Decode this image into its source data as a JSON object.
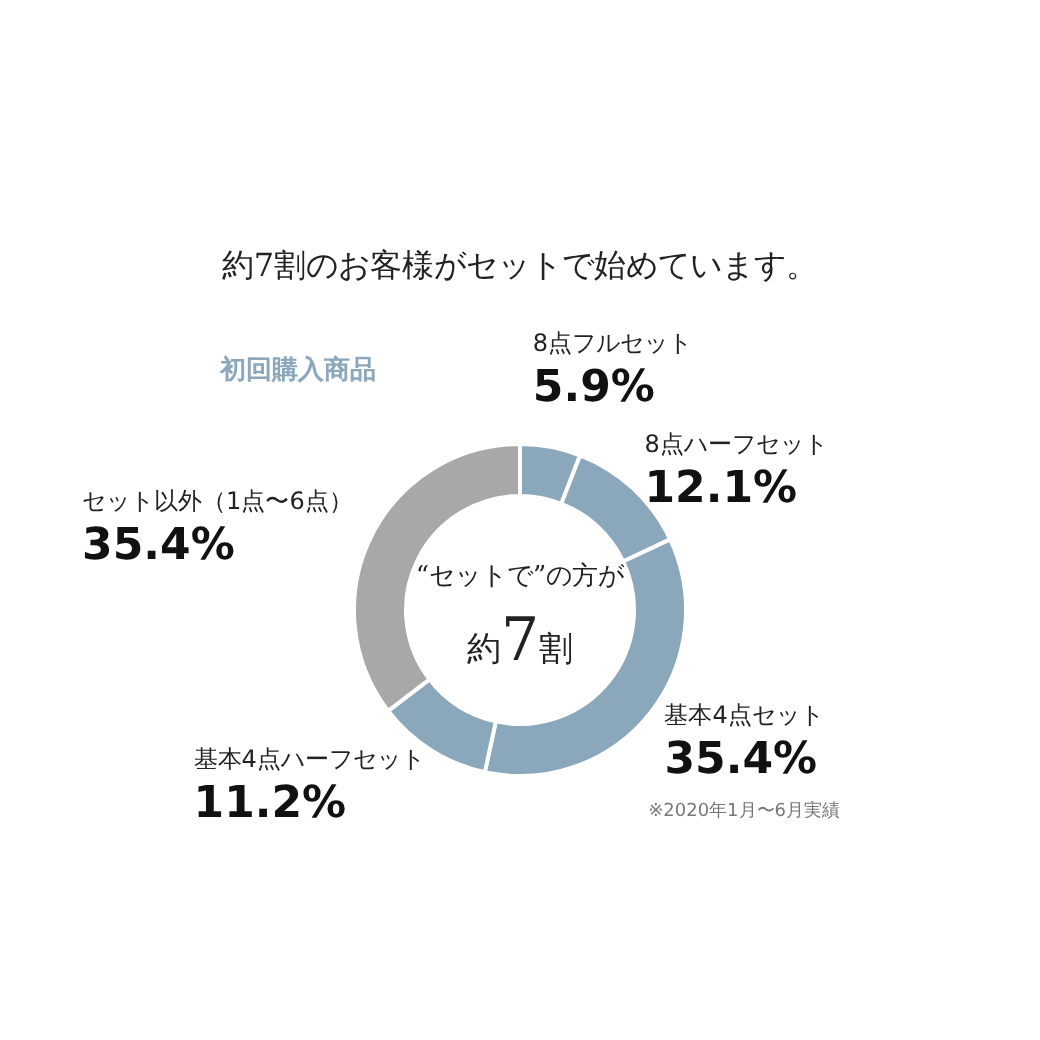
{
  "chart_data": {
    "type": "donut",
    "title": "約7割のお客様がセットで始めています。",
    "subtitle": "初回購入商品",
    "categories": [
      "8点フルセット",
      "8点ハーフセット",
      "基本4点セット",
      "基本4点ハーフセット",
      "セット以外（1点〜6点）"
    ],
    "value_labels": [
      "5.9%",
      "12.1%",
      "35.4%",
      "11.2%",
      "35.4%"
    ],
    "values": [
      5.9,
      12.1,
      35.4,
      11.2,
      35.4
    ],
    "colors": [
      "#8ba7bc",
      "#8ba7bc",
      "#8ba7bc",
      "#8ba7bc",
      "#a8a8a8"
    ],
    "annotations": [
      "“セットで”の方が",
      "約7割",
      "※2020年1月〜6月実績"
    ]
  }
}
